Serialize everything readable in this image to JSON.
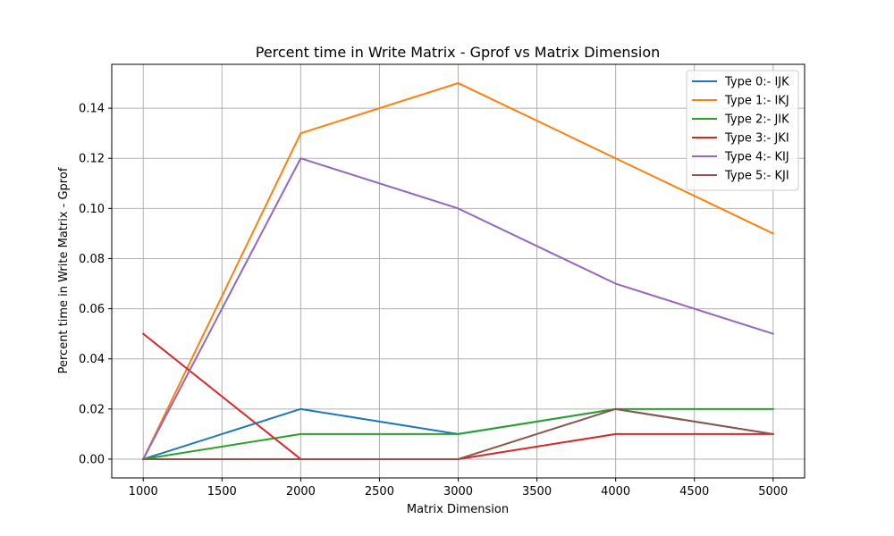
{
  "chart_data": {
    "type": "line",
    "title": "Percent time in Write Matrix - Gprof vs Matrix Dimension",
    "xlabel": "Matrix Dimension",
    "ylabel": "Percent time in Write Matrix - Gprof",
    "x": [
      1000,
      2000,
      3000,
      4000,
      5000
    ],
    "xlim": [
      800,
      5200
    ],
    "ylim": [
      -0.0075,
      0.1575
    ],
    "xticks": [
      "1000",
      "1500",
      "2000",
      "2500",
      "3000",
      "3500",
      "4000",
      "4500",
      "5000"
    ],
    "xtick_values": [
      1000,
      1500,
      2000,
      2500,
      3000,
      3500,
      4000,
      4500,
      5000
    ],
    "yticks": [
      "0.00",
      "0.02",
      "0.04",
      "0.06",
      "0.08",
      "0.10",
      "0.12",
      "0.14"
    ],
    "ytick_values": [
      0.0,
      0.02,
      0.04,
      0.06,
      0.08,
      0.1,
      0.12,
      0.14
    ],
    "grid": true,
    "legend_position": "top-right",
    "series": [
      {
        "name": "Type 0:- IJK",
        "color": "#1f77b4",
        "values": [
          0.0,
          0.02,
          0.01,
          0.02,
          0.01
        ]
      },
      {
        "name": "Type 1:- IKJ",
        "color": "#ff7f0e",
        "values": [
          0.0,
          0.13,
          0.15,
          0.12,
          0.09
        ]
      },
      {
        "name": "Type 2:- JIK",
        "color": "#2ca02c",
        "values": [
          0.0,
          0.01,
          0.01,
          0.02,
          0.02
        ]
      },
      {
        "name": "Type 3:- JKI",
        "color": "#d62728",
        "values": [
          0.05,
          0.0,
          0.0,
          0.01,
          0.01
        ]
      },
      {
        "name": "Type 4:- KIJ",
        "color": "#9467bd",
        "values": [
          0.0,
          0.12,
          0.1,
          0.07,
          0.05
        ]
      },
      {
        "name": "Type 5:- KJI",
        "color": "#8c564b",
        "values": [
          0.0,
          0.0,
          0.0,
          0.02,
          0.01
        ]
      }
    ]
  }
}
